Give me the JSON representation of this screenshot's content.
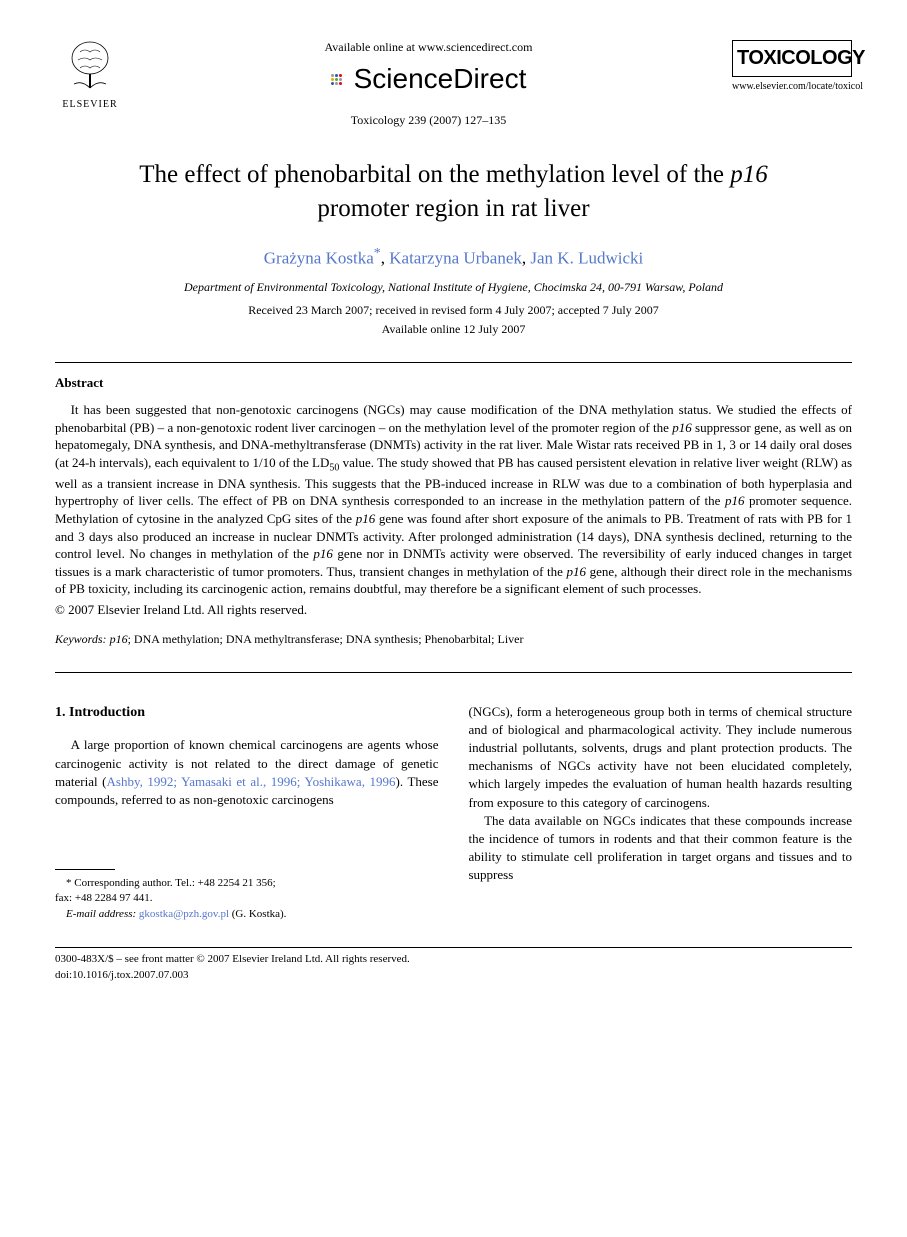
{
  "header": {
    "elsevier_name": "ELSEVIER",
    "available_online": "Available online at www.sciencedirect.com",
    "sciencedirect": "ScienceDirect",
    "journal_ref": "Toxicology 239 (2007) 127–135",
    "journal_name": "TOXICOLOGY",
    "journal_url": "www.elsevier.com/locate/toxicol",
    "sd_dot_colors": [
      "#2a5caa",
      "#e30613",
      "#f7a600",
      "#5aa641",
      "#999999"
    ]
  },
  "title": {
    "pre": "The effect of phenobarbital on the methylation level of the ",
    "italic": "p16",
    "post": " promoter region in rat liver"
  },
  "authors": {
    "a1": "Grażyna Kostka",
    "a2": "Katarzyna Urbanek",
    "a3": "Jan K. Ludwicki",
    "corr_symbol": "*"
  },
  "affiliation": "Department of Environmental Toxicology, National Institute of Hygiene, Chocimska 24, 00-791 Warsaw, Poland",
  "dates": {
    "line1": "Received 23 March 2007; received in revised form 4 July 2007; accepted 7 July 2007",
    "line2": "Available online 12 July 2007"
  },
  "abstract": {
    "heading": "Abstract",
    "body_segments": [
      {
        "t": "It has been suggested that non-genotoxic carcinogens (NGCs) may cause modification of the DNA methylation status. We studied the effects of phenobarbital (PB) – a non-genotoxic rodent liver carcinogen – on the methylation level of the promoter region of the "
      },
      {
        "t": "p16",
        "italic": true
      },
      {
        "t": " suppressor gene, as well as on hepatomegaly, DNA synthesis, and DNA-methyltransferase (DNMTs) activity in the rat liver. Male Wistar rats received PB in 1, 3 or 14 daily oral doses (at 24-h intervals), each equivalent to 1/10 of the LD"
      },
      {
        "t": "50",
        "sub": true
      },
      {
        "t": " value. The study showed that PB has caused persistent elevation in relative liver weight (RLW) as well as a transient increase in DNA synthesis. This suggests that the PB-induced increase in RLW was due to a combination of both hyperplasia and hypertrophy of liver cells. The effect of PB on DNA synthesis corresponded to an increase in the methylation pattern of the "
      },
      {
        "t": "p16",
        "italic": true
      },
      {
        "t": " promoter sequence. Methylation of cytosine in the analyzed CpG sites of the "
      },
      {
        "t": "p16",
        "italic": true
      },
      {
        "t": " gene was found after short exposure of the animals to PB. Treatment of rats with PB for 1 and 3 days also produced an increase in nuclear DNMTs activity. After prolonged administration (14 days), DNA synthesis declined, returning to the control level. No changes in methylation of the "
      },
      {
        "t": "p16",
        "italic": true
      },
      {
        "t": " gene nor in DNMTs activity were observed. The reversibility of early induced changes in target tissues is a mark characteristic of tumor promoters. Thus, transient changes in methylation of the "
      },
      {
        "t": "p16",
        "italic": true
      },
      {
        "t": " gene, although their direct role in the mechanisms of PB toxicity, including its carcinogenic action, remains doubtful, may therefore be a significant element of such processes."
      }
    ],
    "copyright": "© 2007 Elsevier Ireland Ltd. All rights reserved."
  },
  "keywords": {
    "label": "Keywords:",
    "items": " p16; DNA methylation; DNA methyltransferase; DNA synthesis; Phenobarbital; Liver",
    "p16": "p16"
  },
  "section1": {
    "heading": "1. Introduction",
    "col1_pre": "A large proportion of known chemical carcinogens are agents whose carcinogenic activity is not related to the direct damage of genetic material (",
    "col1_cite": "Ashby, 1992; Yamasaki et al., 1996; Yoshikawa, 1996",
    "col1_post": "). These compounds, referred to as non-genotoxic carcinogens",
    "col2_p1": "(NGCs), form a heterogeneous group both in terms of chemical structure and of biological and pharmacological activity. They include numerous industrial pollutants, solvents, drugs and plant protection products. The mechanisms of NGCs activity have not been elucidated completely, which largely impedes the evaluation of human health hazards resulting from exposure to this category of carcinogens.",
    "col2_p2": "The data available on NGCs indicates that these compounds increase the incidence of tumors in rodents and that their common feature is the ability to stimulate cell proliferation in target organs and tissues and to suppress"
  },
  "footnote": {
    "line1": "Corresponding author. Tel.: +48 2254 21 356;",
    "line2": "fax: +48 2284 97 441.",
    "email_label": "E-mail address:",
    "email": "gkostka@pzh.gov.pl",
    "email_suffix": " (G. Kostka).",
    "corr_symbol": "*"
  },
  "footer": {
    "line1": "0300-483X/$ – see front matter © 2007 Elsevier Ireland Ltd. All rights reserved.",
    "line2": "doi:10.1016/j.tox.2007.07.003"
  },
  "colors": {
    "link": "#5577cc",
    "text": "#000000",
    "background": "#ffffff"
  }
}
